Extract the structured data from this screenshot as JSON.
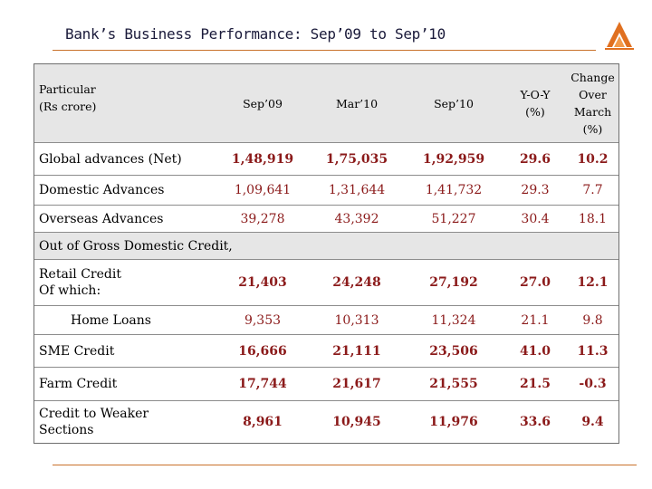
{
  "title": "Bank’s Business Performance: Sep’09 to Sep’10",
  "logo_icon": "bank-logo-icon",
  "colors": {
    "accent": "#c9722b",
    "value_red": "#8b1a1a",
    "band_gray": "#e6e6e6"
  },
  "table": {
    "headers": {
      "particular_line1": "Particular",
      "particular_line2": "(Rs crore)",
      "sep09": "Sep’09",
      "mar10": "Mar’10",
      "sep10": "Sep’10",
      "yoy_line1": "Y-O-Y",
      "yoy_line2": "(%)",
      "chg_line1": "Change",
      "chg_line2": "Over",
      "chg_line3": "March",
      "chg_line4": "(%)"
    },
    "rows": [
      {
        "label": "Global advances (Net)",
        "v": [
          "1,48,919",
          "1,75,035",
          "1,92,959",
          "29.6",
          "10.2"
        ]
      },
      {
        "label": "Domestic Advances",
        "v": [
          "1,09,641",
          "1,31,644",
          "1,41,732",
          "29.3",
          "7.7"
        ]
      },
      {
        "label": "Overseas Advances",
        "v": [
          "39,278",
          "43,392",
          "51,227",
          "30.4",
          "18.1"
        ]
      },
      {
        "label": "Out of Gross Domestic Credit,"
      },
      {
        "label_line1": "Retail Credit",
        "label_line2": "Of which:",
        "v": [
          "21,403",
          "24,248",
          "27,192",
          "27.0",
          "12.1"
        ]
      },
      {
        "label": "Home Loans",
        "v": [
          "9,353",
          "10,313",
          "11,324",
          "21.1",
          "9.8"
        ]
      },
      {
        "label": "SME Credit",
        "v": [
          "16,666",
          "21,111",
          "23,506",
          "41.0",
          "11.3"
        ]
      },
      {
        "label": "Farm Credit",
        "v": [
          "17,744",
          "21,617",
          "21,555",
          "21.5",
          "-0.3"
        ]
      },
      {
        "label_line1": "Credit to Weaker",
        "label_line2": "Sections",
        "v": [
          "8,961",
          "10,945",
          "11,976",
          "33.6",
          "9.4"
        ]
      }
    ]
  }
}
